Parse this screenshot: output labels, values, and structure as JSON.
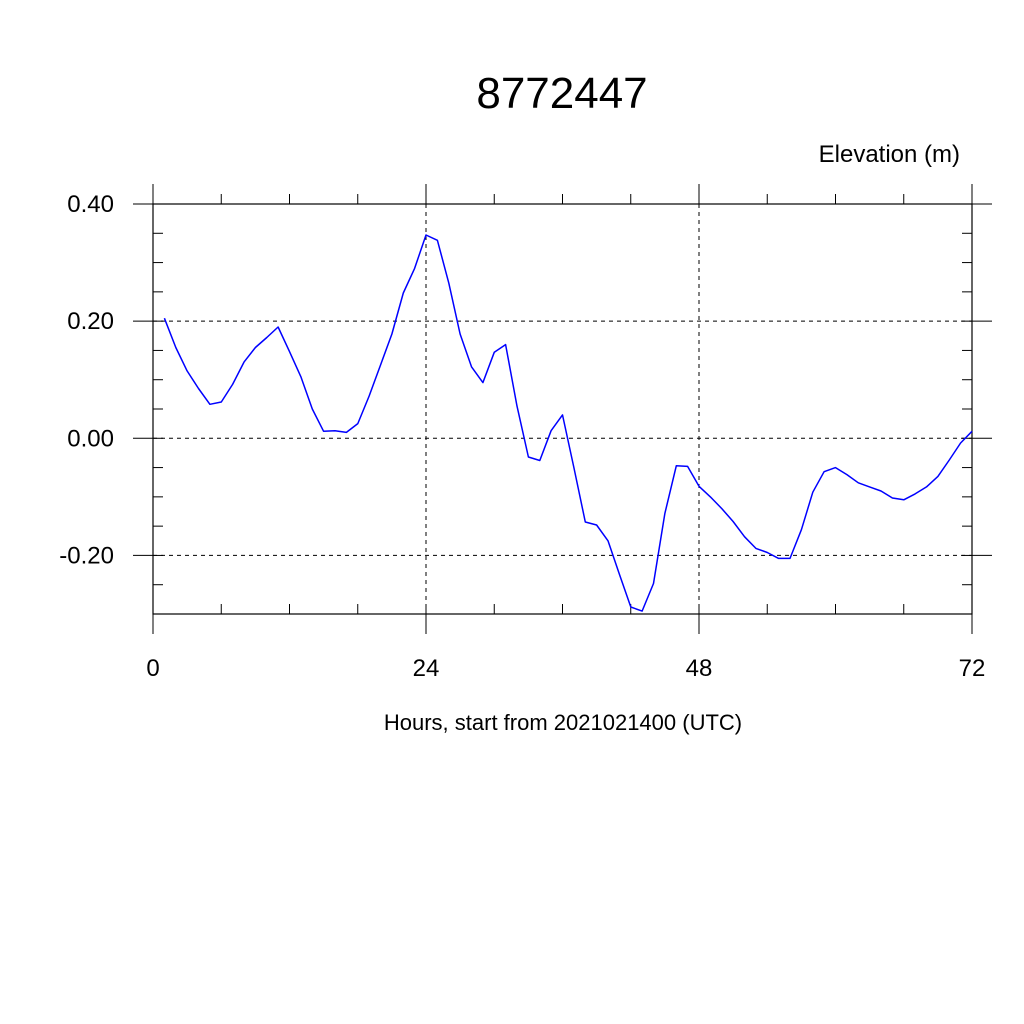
{
  "chart_data": {
    "type": "line",
    "title": "8772447",
    "unit_label": "Elevation (m)",
    "xlabel": "Hours, start from 2021021400 (UTC)",
    "xlim": [
      0,
      72
    ],
    "ylim": [
      -0.3,
      0.4
    ],
    "x_ticks": [
      0,
      24,
      48,
      72
    ],
    "x_tick_labels": [
      "0",
      "24",
      "48",
      "72"
    ],
    "y_ticks": [
      0.4,
      0.2,
      0.0,
      -0.2
    ],
    "y_tick_labels": [
      "0.40",
      "0.20",
      "0.00",
      "-0.20"
    ],
    "grid": true,
    "series": [
      {
        "color": "#0000ff",
        "x": [
          1,
          2,
          3,
          4,
          5,
          6,
          7,
          8,
          9,
          10,
          11,
          12,
          13,
          14,
          15,
          16,
          17,
          18,
          19,
          20,
          21,
          22,
          23,
          24,
          25,
          26,
          27,
          28,
          29,
          30,
          31,
          32,
          33,
          34,
          35,
          36,
          37,
          38,
          39,
          40,
          41,
          42,
          43,
          44,
          45,
          46,
          47,
          48,
          49,
          50,
          51,
          52,
          53,
          54,
          55,
          56,
          57,
          58,
          59,
          60,
          61,
          62,
          63,
          64,
          65,
          66,
          67,
          68,
          69,
          70,
          71,
          72
        ],
        "values": [
          0.205,
          0.155,
          0.115,
          0.085,
          0.058,
          0.062,
          0.092,
          0.13,
          0.155,
          0.172,
          0.19,
          0.148,
          0.105,
          0.05,
          0.012,
          0.013,
          0.01,
          0.025,
          0.072,
          0.125,
          0.178,
          0.248,
          0.29,
          0.347,
          0.338,
          0.265,
          0.178,
          0.122,
          0.095,
          0.147,
          0.16,
          0.055,
          -0.032,
          -0.038,
          0.013,
          0.04,
          -0.05,
          -0.143,
          -0.148,
          -0.175,
          -0.232,
          -0.288,
          -0.295,
          -0.248,
          -0.128,
          -0.047,
          -0.048,
          -0.082,
          -0.1,
          -0.12,
          -0.142,
          -0.168,
          -0.188,
          -0.195,
          -0.205,
          -0.205,
          -0.156,
          -0.092,
          -0.057,
          -0.05,
          -0.062,
          -0.076,
          -0.083,
          -0.09,
          -0.102,
          -0.105,
          -0.095,
          -0.083,
          -0.065,
          -0.037,
          -0.008,
          0.012
        ]
      }
    ]
  }
}
